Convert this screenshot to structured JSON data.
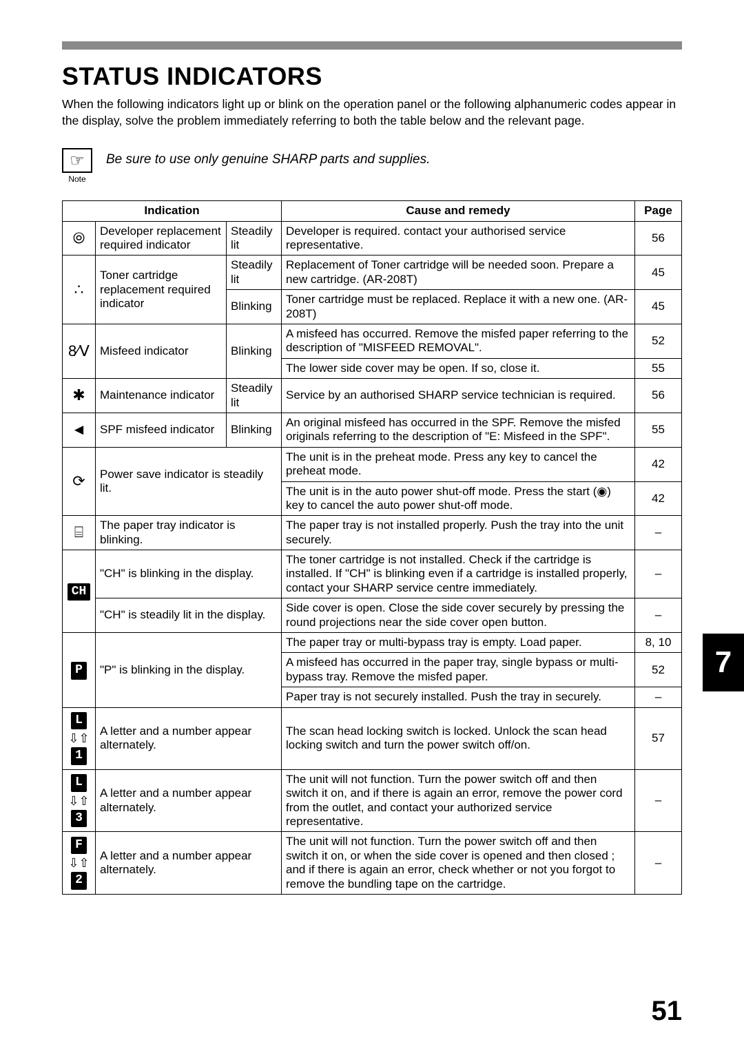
{
  "header": {
    "title": "STATUS INDICATORS",
    "intro": "When the following indicators light up or blink on the operation panel or the following alphanumeric codes appear in the display, solve the problem immediately referring to both the table below and the relevant page."
  },
  "note": {
    "label": "Note",
    "text": "Be sure to use only genuine SHARP parts and supplies."
  },
  "columns": {
    "indication": "Indication",
    "cause": "Cause and remedy",
    "page": "Page"
  },
  "rows": {
    "developer": {
      "name": "Developer replacement required indicator",
      "state": "Steadily lit",
      "cause": "Developer is required. contact your authorised service representative.",
      "page": "56"
    },
    "toner_steady": {
      "name": "Toner cartridge replacement required indicator",
      "state": "Steadily lit",
      "cause": "Replacement of Toner cartridge will be needed soon. Prepare a new cartridge. (AR-208T)",
      "page": "45"
    },
    "toner_blink": {
      "state": "Blinking",
      "cause": "Toner cartridge must be replaced. Replace it with a new one. (AR-208T)",
      "page": "45"
    },
    "misfeed1": {
      "name": "Misfeed indicator",
      "state": "Blinking",
      "cause": "A misfeed has occurred. Remove the misfed paper referring to the description of \"MISFEED REMOVAL\".",
      "page": "52"
    },
    "misfeed2": {
      "cause": "The lower side cover may be open. If so, close it.",
      "page": "55"
    },
    "maint": {
      "name": "Maintenance indicator",
      "state": "Steadily lit",
      "cause": "Service by an authorised SHARP service technician is required.",
      "page": "56"
    },
    "spf": {
      "name": "SPF misfeed indicator",
      "state": "Blinking",
      "cause": "An original misfeed has occurred in the SPF. Remove the misfed originals referring to the description of \"E: Misfeed in the SPF\".",
      "page": "55"
    },
    "power1": {
      "name": "Power save indicator is steadily lit.",
      "cause": "The unit is in the preheat mode. Press any key to cancel the preheat mode.",
      "page": "42"
    },
    "power2": {
      "cause": "The unit is in the auto power shut-off mode. Press the start (◉) key to cancel the auto power shut-off mode.",
      "page": "42"
    },
    "tray": {
      "name": "The paper tray indicator is blinking.",
      "cause": "The paper tray is not installed properly. Push the tray into the unit securely.",
      "page": "–"
    },
    "ch_blink": {
      "name": "\"CH\" is blinking in the display.",
      "cause": "The toner cartridge is not installed. Check if the cartridge is installed. If \"CH\" is blinking even if a cartridge is installed properly, contact your SHARP service centre immediately.",
      "page": "–"
    },
    "ch_steady": {
      "name": "\"CH\" is steadily lit in the display.",
      "cause": "Side cover is open. Close the side cover securely by pressing the round projections near the side cover open button.",
      "page": "–"
    },
    "p1": {
      "name": "\"P\" is blinking in the display.",
      "cause": "The paper tray or multi-bypass tray is empty. Load paper.",
      "page": "8, 10"
    },
    "p2": {
      "cause": "A misfeed has occurred in the paper tray, single bypass or multi-bypass tray. Remove the misfed paper.",
      "page": "52"
    },
    "p3": {
      "cause": "Paper tray is not securely installed. Push the tray in securely.",
      "page": "–"
    },
    "l1": {
      "name": "A letter and a number appear alternately.",
      "cause": "The scan head locking switch is locked. Unlock the scan head locking switch and turn the power switch off/on.",
      "page": "57"
    },
    "l3": {
      "name": "A letter and a number appear alternately.",
      "cause": "The unit will not function. Turn the power switch off and then switch it on, and if there is again an error, remove the power cord from the outlet, and contact your authorized service representative.",
      "page": "–"
    },
    "f2": {
      "name": "A letter and a number appear alternately.",
      "cause": "The unit will not function. Turn the power switch off and then switch it on, or when the side cover is opened and then closed ; and if there is again an error, check whether or not you forgot to remove the bundling tape on the cartridge.",
      "page": "–"
    }
  },
  "sideTab": "7",
  "pageNumber": "51"
}
